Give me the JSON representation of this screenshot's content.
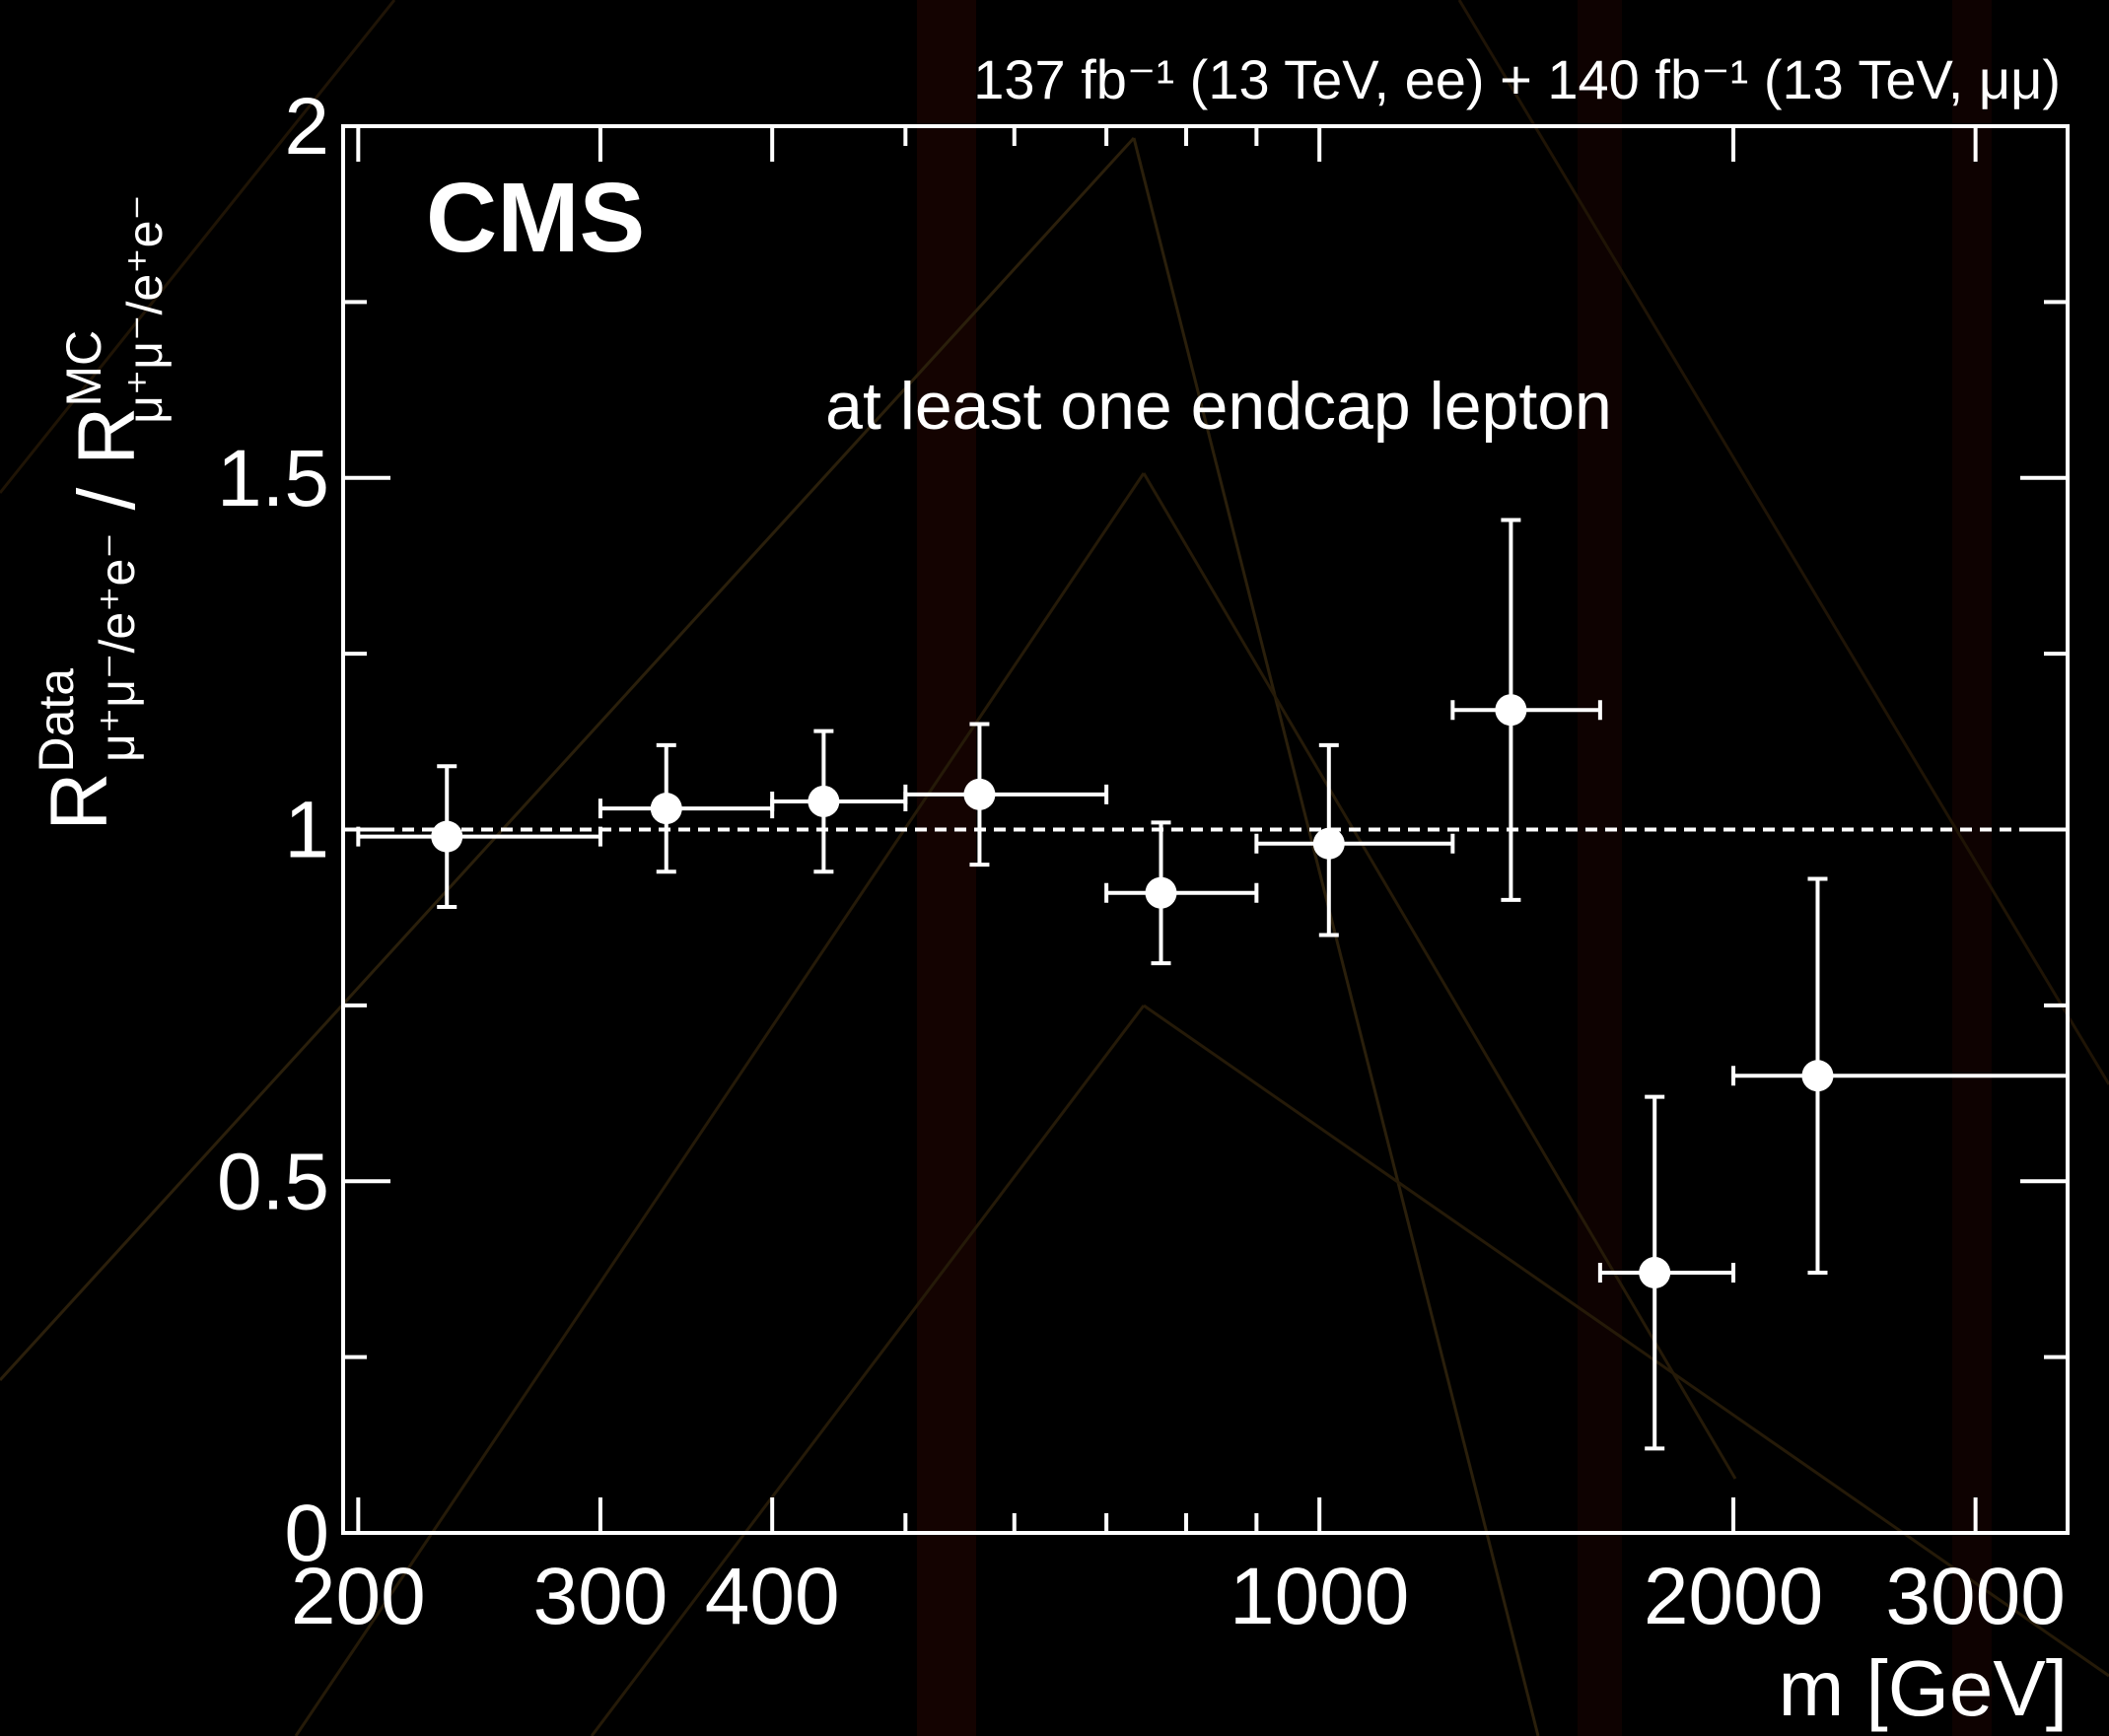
{
  "chart_data": {
    "type": "scatter",
    "title": "CMS",
    "subtitle": "137 fb⁻¹ (13 TeV, ee) + 140 fb⁻¹ (13 TeV, μμ)",
    "annotation": "at least one endcap lepton",
    "xlabel": "m [GeV]",
    "ylabel": [
      {
        "main": "R",
        "sup": "Data",
        "sub": "μ⁺μ⁻/e⁺e⁻"
      },
      {
        "main": " / R",
        "sup": "MC",
        "sub": "μ⁺μ⁻/e⁺e⁻"
      }
    ],
    "x": [
      232,
      335,
      436,
      566,
      767,
      1016,
      1378,
      1753,
      2303
    ],
    "x_low": [
      200,
      300,
      400,
      500,
      700,
      900,
      1250,
      1600,
      2000
    ],
    "x_high": [
      300,
      400,
      500,
      700,
      900,
      1250,
      1600,
      2000,
      3500
    ],
    "series": [
      {
        "color": "#ffffff",
        "values": [
          0.99,
          1.03,
          1.04,
          1.05,
          0.91,
          0.98,
          1.17,
          0.37,
          0.65
        ],
        "yerr_low": [
          0.1,
          0.09,
          0.1,
          0.1,
          0.1,
          0.13,
          0.27,
          0.25,
          0.28
        ],
        "yerr_high": [
          0.1,
          0.09,
          0.1,
          0.1,
          0.1,
          0.14,
          0.27,
          0.25,
          0.28
        ]
      }
    ],
    "reference_line": 1,
    "xscale": "log",
    "xlim": [
      195,
      3500
    ],
    "xticks": [
      200,
      300,
      400,
      1000,
      2000,
      3000
    ],
    "xminorticks": [
      500,
      600,
      700,
      800,
      900
    ],
    "ylim": [
      0,
      2
    ],
    "yticks": [
      0,
      0.5,
      1,
      1.5,
      2
    ],
    "yminorticks": [
      0.25,
      0.75,
      1.25,
      1.75
    ]
  }
}
